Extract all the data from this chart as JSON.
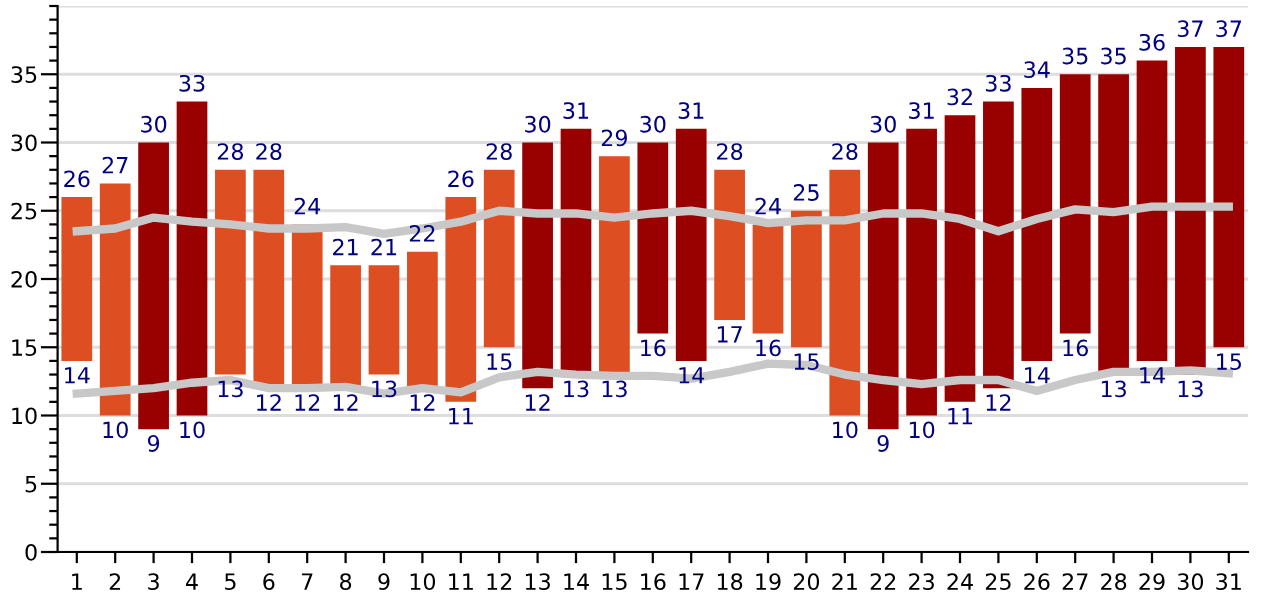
{
  "chart_data": {
    "type": "bar",
    "categories": [
      "1",
      "2",
      "3",
      "4",
      "5",
      "6",
      "7",
      "8",
      "9",
      "10",
      "11",
      "12",
      "13",
      "14",
      "15",
      "16",
      "17",
      "18",
      "19",
      "20",
      "21",
      "22",
      "23",
      "24",
      "25",
      "26",
      "27",
      "28",
      "29",
      "30",
      "31"
    ],
    "series": [
      {
        "base": [
          14,
          10,
          9,
          10,
          13,
          12,
          12,
          12,
          13,
          12,
          11,
          15,
          12,
          13,
          13,
          16,
          14,
          17,
          16,
          15,
          10,
          9,
          10,
          11,
          12,
          14,
          16,
          13,
          14,
          13,
          15
        ],
        "values": [
          12,
          17,
          21,
          23,
          15,
          16,
          12,
          9,
          8,
          10,
          15,
          13,
          18,
          18,
          16,
          14,
          17,
          11,
          8,
          10,
          18,
          21,
          21,
          21,
          21,
          20,
          19,
          22,
          22,
          24,
          22
        ],
        "colors": [
          "#dd4e22",
          "#dd4e22",
          "#990000",
          "#990000",
          "#dd4e22",
          "#dd4e22",
          "#dd4e22",
          "#dd4e22",
          "#dd4e22",
          "#dd4e22",
          "#dd4e22",
          "#dd4e22",
          "#990000",
          "#990000",
          "#dd4e22",
          "#990000",
          "#990000",
          "#dd4e22",
          "#dd4e22",
          "#dd4e22",
          "#dd4e22",
          "#990000",
          "#990000",
          "#990000",
          "#990000",
          "#990000",
          "#990000",
          "#990000",
          "#990000",
          "#990000",
          "#990000"
        ]
      },
      {
        "type": "line",
        "color": "#c8c8c8",
        "values": [
          23.5,
          23.7,
          24.5,
          24.2,
          24.0,
          23.7,
          23.7,
          23.8,
          23.3,
          23.7,
          24.2,
          25.0,
          24.8,
          24.8,
          24.5,
          24.8,
          25.0,
          24.6,
          24.1,
          24.3,
          24.3,
          24.8,
          24.8,
          24.4,
          23.5,
          24.4,
          25.1,
          24.9,
          25.3,
          25.3,
          25.3
        ]
      },
      {
        "type": "line",
        "color": "#c8c8c8",
        "values": [
          11.6,
          11.8,
          12.0,
          12.4,
          12.6,
          12.0,
          12.0,
          12.1,
          11.6,
          12.0,
          11.7,
          12.8,
          13.2,
          13.0,
          12.9,
          12.9,
          12.7,
          13.2,
          13.8,
          13.7,
          13.0,
          12.6,
          12.3,
          12.6,
          12.6,
          11.8,
          12.6,
          13.2,
          13.2,
          13.3,
          13.1
        ]
      }
    ],
    "ylim": [
      0,
      40
    ],
    "yticks": [
      0,
      {
        "value": 1,
        "label": null
      },
      {
        "value": 2,
        "label": null
      },
      {
        "value": 3,
        "label": null
      },
      {
        "value": 4,
        "label": null
      },
      5,
      {
        "value": 6,
        "label": null
      },
      {
        "value": 7,
        "label": null
      },
      {
        "value": 8,
        "label": null
      },
      {
        "value": 9,
        "label": null
      },
      10,
      {
        "value": 11,
        "label": null
      },
      {
        "value": 12,
        "label": null
      },
      {
        "value": 13,
        "label": null
      },
      {
        "value": 14,
        "label": null
      },
      15,
      {
        "value": 16,
        "label": null
      },
      {
        "value": 17,
        "label": null
      },
      {
        "value": 18,
        "label": null
      },
      {
        "value": 19,
        "label": null
      },
      20,
      {
        "value": 21,
        "label": null
      },
      {
        "value": 22,
        "label": null
      },
      {
        "value": 23,
        "label": null
      },
      {
        "value": 24,
        "label": null
      },
      25,
      {
        "value": 26,
        "label": null
      },
      {
        "value": 27,
        "label": null
      },
      {
        "value": 28,
        "label": null
      },
      {
        "value": 29,
        "label": null
      },
      30,
      {
        "value": 31,
        "label": null
      },
      {
        "value": 32,
        "label": null
      },
      {
        "value": 33,
        "label": null
      },
      {
        "value": 34,
        "label": null
      },
      35,
      {
        "value": 36,
        "label": null
      },
      {
        "value": 37,
        "label": null
      },
      {
        "value": 38,
        "label": null
      },
      {
        "value": 39,
        "label": null
      },
      {
        "value": 40,
        "label": null
      }
    ],
    "grid": "y",
    "annotations": [
      {
        "text": "26",
        "x": "1",
        "y": 26
      },
      {
        "text": "14",
        "x": "1",
        "y": 14
      },
      {
        "text": "27",
        "x": "2",
        "y": 27
      },
      {
        "text": "10",
        "x": "2",
        "y": 10
      },
      {
        "text": "30",
        "x": "3",
        "y": 30
      },
      {
        "text": "9",
        "x": "3",
        "y": 9
      },
      {
        "text": "33",
        "x": "4",
        "y": 33
      },
      {
        "text": "10",
        "x": "4",
        "y": 10
      },
      {
        "text": "28",
        "x": "5",
        "y": 28
      },
      {
        "text": "13",
        "x": "5",
        "y": 13
      },
      {
        "text": "28",
        "x": "6",
        "y": 28
      },
      {
        "text": "12",
        "x": "6",
        "y": 12
      },
      {
        "text": "24",
        "x": "7",
        "y": 24
      },
      {
        "text": "12",
        "x": "7",
        "y": 12
      },
      {
        "text": "21",
        "x": "8",
        "y": 21
      },
      {
        "text": "12",
        "x": "8",
        "y": 12
      },
      {
        "text": "21",
        "x": "9",
        "y": 21
      },
      {
        "text": "13",
        "x": "9",
        "y": 13
      },
      {
        "text": "22",
        "x": "10",
        "y": 22
      },
      {
        "text": "12",
        "x": "10",
        "y": 12
      },
      {
        "text": "26",
        "x": "11",
        "y": 26
      },
      {
        "text": "11",
        "x": "11",
        "y": 11
      },
      {
        "text": "28",
        "x": "12",
        "y": 28
      },
      {
        "text": "15",
        "x": "12",
        "y": 15
      },
      {
        "text": "30",
        "x": "13",
        "y": 30
      },
      {
        "text": "12",
        "x": "13",
        "y": 12
      },
      {
        "text": "31",
        "x": "14",
        "y": 31
      },
      {
        "text": "13",
        "x": "14",
        "y": 13
      },
      {
        "text": "29",
        "x": "15",
        "y": 29
      },
      {
        "text": "13",
        "x": "15",
        "y": 13
      },
      {
        "text": "30",
        "x": "16",
        "y": 30
      },
      {
        "text": "16",
        "x": "16",
        "y": 16
      },
      {
        "text": "31",
        "x": "17",
        "y": 31
      },
      {
        "text": "14",
        "x": "17",
        "y": 14
      },
      {
        "text": "28",
        "x": "18",
        "y": 28
      },
      {
        "text": "17",
        "x": "18",
        "y": 17
      },
      {
        "text": "24",
        "x": "19",
        "y": 24
      },
      {
        "text": "16",
        "x": "19",
        "y": 16
      },
      {
        "text": "25",
        "x": "20",
        "y": 25
      },
      {
        "text": "15",
        "x": "20",
        "y": 15
      },
      {
        "text": "28",
        "x": "21",
        "y": 28
      },
      {
        "text": "10",
        "x": "21",
        "y": 10
      },
      {
        "text": "30",
        "x": "22",
        "y": 30
      },
      {
        "text": "9",
        "x": "22",
        "y": 9
      },
      {
        "text": "31",
        "x": "23",
        "y": 31
      },
      {
        "text": "10",
        "x": "23",
        "y": 10
      },
      {
        "text": "32",
        "x": "24",
        "y": 32
      },
      {
        "text": "11",
        "x": "24",
        "y": 11
      },
      {
        "text": "33",
        "x": "25",
        "y": 33
      },
      {
        "text": "12",
        "x": "25",
        "y": 12
      },
      {
        "text": "34",
        "x": "26",
        "y": 34
      },
      {
        "text": "14",
        "x": "26",
        "y": 14
      },
      {
        "text": "35",
        "x": "27",
        "y": 35
      },
      {
        "text": "16",
        "x": "27",
        "y": 16
      },
      {
        "text": "35",
        "x": "28",
        "y": 35
      },
      {
        "text": "13",
        "x": "28",
        "y": 13
      },
      {
        "text": "36",
        "x": "29",
        "y": 36
      },
      {
        "text": "14",
        "x": "29",
        "y": 14
      },
      {
        "text": "37",
        "x": "30",
        "y": 37
      },
      {
        "text": "13",
        "x": "30",
        "y": 13
      },
      {
        "text": "37",
        "x": "31",
        "y": 37
      },
      {
        "text": "15",
        "x": "31",
        "y": 15
      }
    ]
  }
}
